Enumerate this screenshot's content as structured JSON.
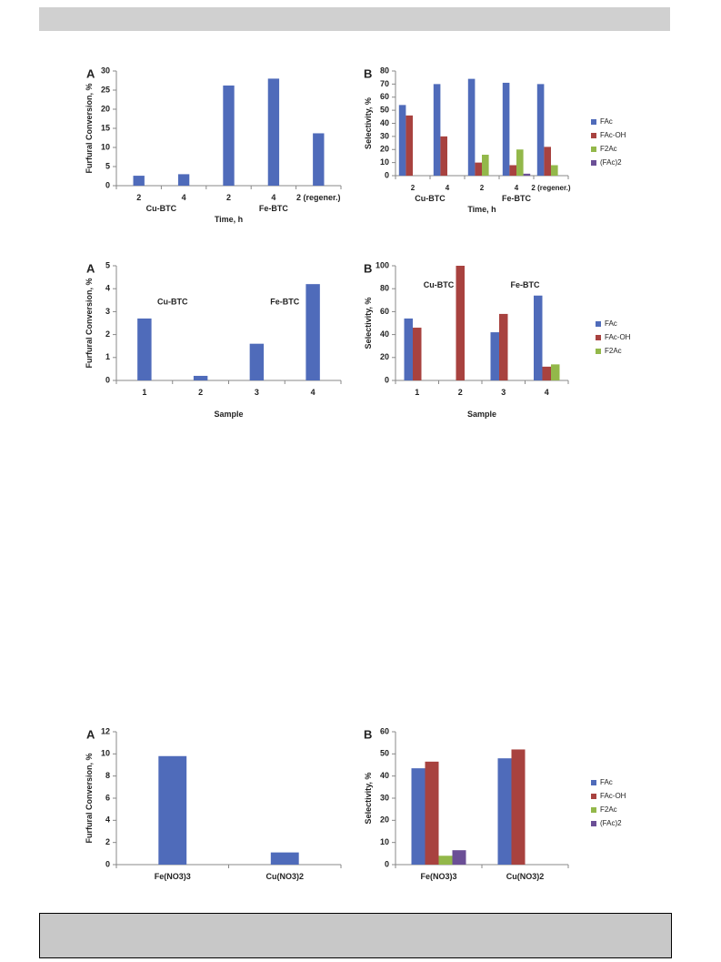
{
  "chart_data": [
    {
      "type": "bar",
      "panel": "A",
      "ylabel": "Furfural Conversion, %",
      "xlabel": "Time, h",
      "categories": [
        "2",
        "4",
        "2",
        "4",
        "2 (regener.)"
      ],
      "groups": [
        "Cu-BTC",
        "Fe-BTC"
      ],
      "values": [
        2.6,
        3.0,
        26.2,
        28.0,
        13.7
      ],
      "color": "#4f6bba",
      "ylim": [
        0,
        30
      ],
      "yticks": [
        0,
        5,
        10,
        15,
        20,
        25,
        30
      ]
    },
    {
      "type": "bar",
      "panel": "B",
      "ylabel": "Selectivity, %",
      "xlabel": "Time, h",
      "categories": [
        "2",
        "4",
        "2",
        "4",
        "2 (regener.)"
      ],
      "groups": [
        "Cu-BTC",
        "Fe-BTC"
      ],
      "series": [
        {
          "name": "FAc",
          "color": "#4f6bba",
          "values": [
            54,
            70,
            74,
            71,
            70
          ]
        },
        {
          "name": "FAc-OH",
          "color": "#a8423f",
          "values": [
            46,
            30,
            10,
            8,
            22
          ]
        },
        {
          "name": "F2Ac",
          "color": "#93b84a",
          "values": [
            0,
            0,
            16,
            20,
            8
          ]
        },
        {
          "name": "(FAc)2",
          "color": "#6b4f96",
          "values": [
            0,
            0,
            0,
            1.5,
            0
          ]
        }
      ],
      "ylim": [
        0,
        80
      ],
      "yticks": [
        0,
        10,
        20,
        30,
        40,
        50,
        60,
        70,
        80
      ]
    },
    {
      "type": "bar",
      "panel": "A",
      "ylabel": "Furfural Conversion, %",
      "xlabel": "Sample",
      "categories": [
        "1",
        "2",
        "3",
        "4"
      ],
      "annotations": [
        "Cu-BTC",
        "Fe-BTC"
      ],
      "values": [
        2.7,
        0.2,
        1.6,
        4.2
      ],
      "color": "#4f6bba",
      "ylim": [
        0,
        5
      ],
      "yticks": [
        0,
        1,
        2,
        3,
        4,
        5
      ]
    },
    {
      "type": "bar",
      "panel": "B",
      "ylabel": "Selectivity, %",
      "xlabel": "Sample",
      "categories": [
        "1",
        "2",
        "3",
        "4"
      ],
      "annotations": [
        "Cu-BTC",
        "Fe-BTC"
      ],
      "series": [
        {
          "name": "FAc",
          "color": "#4f6bba",
          "values": [
            54,
            0,
            42,
            74
          ]
        },
        {
          "name": "FAc-OH",
          "color": "#a8423f",
          "values": [
            46,
            100,
            58,
            12
          ]
        },
        {
          "name": "F2Ac",
          "color": "#93b84a",
          "values": [
            0,
            0,
            0,
            14
          ]
        }
      ],
      "ylim": [
        0,
        100
      ],
      "yticks": [
        0,
        20,
        40,
        60,
        80,
        100
      ]
    },
    {
      "type": "bar",
      "panel": "A",
      "ylabel": "Furfural Conversion, %",
      "categories": [
        "Fe(NO3)3",
        "Cu(NO3)2"
      ],
      "values": [
        9.8,
        1.1
      ],
      "color": "#4f6bba",
      "ylim": [
        0,
        12
      ],
      "yticks": [
        0,
        2,
        4,
        6,
        8,
        10,
        12
      ]
    },
    {
      "type": "bar",
      "panel": "B",
      "ylabel": "Selectivity, %",
      "categories": [
        "Fe(NO3)3",
        "Cu(NO3)2"
      ],
      "series": [
        {
          "name": "FAc",
          "color": "#4f6bba",
          "values": [
            43.5,
            48
          ]
        },
        {
          "name": "FAc-OH",
          "color": "#a8423f",
          "values": [
            46.5,
            52
          ]
        },
        {
          "name": "F2Ac",
          "color": "#93b84a",
          "values": [
            4,
            0
          ]
        },
        {
          "name": "(FAc)2",
          "color": "#6b4f96",
          "values": [
            6.5,
            0
          ]
        }
      ],
      "ylim": [
        0,
        60
      ],
      "yticks": [
        0,
        10,
        20,
        30,
        40,
        50,
        60
      ]
    }
  ]
}
